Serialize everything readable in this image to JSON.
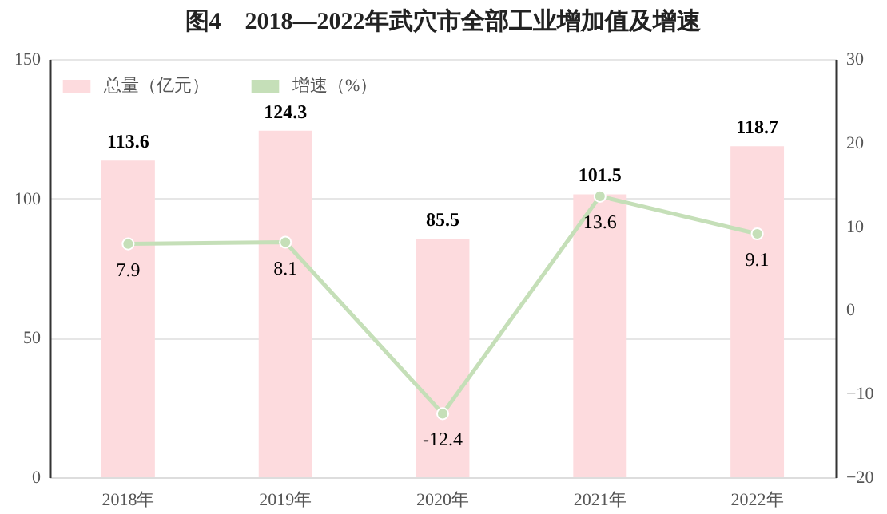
{
  "chart_data": {
    "type": "bar",
    "title": "图4　2018—2022年武穴市全部工业增加值及增速",
    "categories": [
      "2018年",
      "2019年",
      "2020年",
      "2021年",
      "2022年"
    ],
    "series": [
      {
        "name": "总量（亿元）",
        "color": "#fddbde",
        "values": [
          113.6,
          124.3,
          85.5,
          101.5,
          118.7
        ]
      },
      {
        "name": "增速（%）",
        "type": "line",
        "axis": "y2",
        "color": "#c5dfb8",
        "values": [
          7.9,
          8.1,
          -12.4,
          13.6,
          9.1
        ]
      }
    ],
    "ylim": [
      0,
      150
    ],
    "yticks": [
      0,
      50,
      100,
      150
    ],
    "y2lim": [
      -20,
      30
    ],
    "y2ticks": [
      -20,
      -10,
      0,
      10,
      20,
      30
    ],
    "data_labels": true,
    "grid": "y",
    "legend": "top left",
    "marker": "circle",
    "line_style": "solid"
  }
}
